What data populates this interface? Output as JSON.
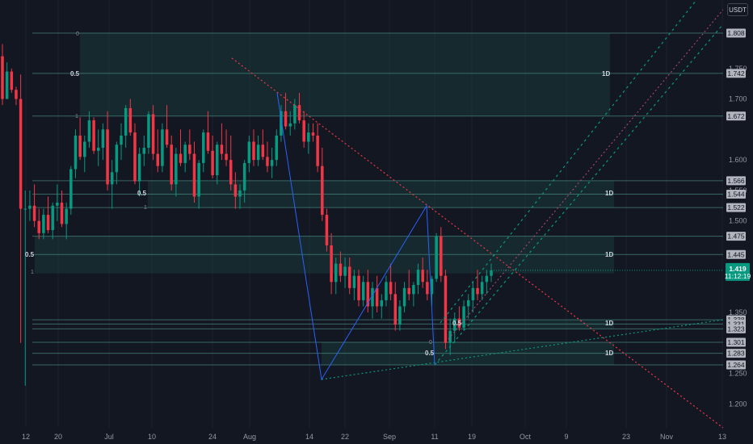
{
  "currency_button": "USDT",
  "chart_data": {
    "type": "candlestick",
    "time_axis_labels": [
      "12",
      "20",
      "Jul",
      "10",
      "24",
      "Aug",
      "14",
      "22",
      "Sep",
      "11",
      "19",
      "Oct",
      "9",
      "23",
      "Nov",
      "13"
    ],
    "y_axis_ticks": [
      "1.750",
      "1.700",
      "1.600",
      "1.550",
      "1.500",
      "1.350",
      "1.250",
      "1.200"
    ],
    "y_range": [
      1.16,
      1.84
    ],
    "current_price": {
      "value": 1.419,
      "label": "1.419",
      "countdown": "11:12:19",
      "color": "#089981"
    },
    "price_tags": [
      "1.808",
      "1.742",
      "1.672",
      "1.566",
      "1.544",
      "1.522",
      "1.475",
      "1.445",
      "1.414",
      "1.338",
      "1.331",
      "1.323",
      "1.301",
      "1.283",
      "1.264"
    ],
    "zone_labels": {
      "zone_top_fib_0": "0",
      "zone_top_fib_05": "0.5",
      "zone_top_fib_1": "1",
      "zone_top_tf": "1D",
      "zone_mid_fib_05": "0.5",
      "zone_mid_fib_1": "1",
      "zone_mid_tf": "1D",
      "zone_low_fib_05": "0.5",
      "zone_low_fib_1": "1",
      "zone_low_tf": "1D",
      "zone_sep_fib_05": "0.5",
      "zone_sep_tf": "1D",
      "zone_bot_fib_05": "0.5",
      "zone_bot_fib_0": "0",
      "zone_bot_tf": "1D"
    },
    "colors": {
      "up": "#089981",
      "down": "#f23645",
      "zone": "#1e5a4e",
      "zone_line": "#5aa898",
      "trend_red": "#f23645",
      "trend_green": "#089981",
      "pattern_blue": "#2962ff"
    },
    "candles": [
      [
        1.77,
        1.79,
        1.69,
        1.7
      ],
      [
        1.7,
        1.76,
        1.7,
        1.745
      ],
      [
        1.745,
        1.75,
        1.71,
        1.715
      ],
      [
        1.715,
        1.72,
        1.69,
        1.7
      ],
      [
        1.7,
        1.74,
        1.3,
        1.52
      ],
      [
        1.52,
        1.55,
        1.23,
        1.52
      ],
      [
        1.52,
        1.55,
        1.5,
        1.525
      ],
      [
        1.525,
        1.56,
        1.49,
        1.5
      ],
      [
        1.5,
        1.52,
        1.47,
        1.48
      ],
      [
        1.48,
        1.52,
        1.47,
        1.51
      ],
      [
        1.51,
        1.54,
        1.48,
        1.485
      ],
      [
        1.485,
        1.53,
        1.47,
        1.525
      ],
      [
        1.525,
        1.56,
        1.5,
        1.53
      ],
      [
        1.53,
        1.55,
        1.49,
        1.495
      ],
      [
        1.495,
        1.53,
        1.47,
        1.52
      ],
      [
        1.52,
        1.59,
        1.51,
        1.585
      ],
      [
        1.585,
        1.65,
        1.57,
        1.64
      ],
      [
        1.64,
        1.67,
        1.6,
        1.605
      ],
      [
        1.605,
        1.64,
        1.58,
        1.63
      ],
      [
        1.63,
        1.68,
        1.62,
        1.665
      ],
      [
        1.665,
        1.67,
        1.61,
        1.615
      ],
      [
        1.615,
        1.65,
        1.59,
        1.62
      ],
      [
        1.62,
        1.66,
        1.6,
        1.65
      ],
      [
        1.65,
        1.68,
        1.55,
        1.56
      ],
      [
        1.56,
        1.6,
        1.52,
        1.58
      ],
      [
        1.58,
        1.63,
        1.56,
        1.625
      ],
      [
        1.625,
        1.66,
        1.6,
        1.64
      ],
      [
        1.64,
        1.69,
        1.62,
        1.685
      ],
      [
        1.685,
        1.7,
        1.64,
        1.645
      ],
      [
        1.645,
        1.66,
        1.56,
        1.565
      ],
      [
        1.565,
        1.62,
        1.54,
        1.61
      ],
      [
        1.61,
        1.64,
        1.59,
        1.62
      ],
      [
        1.62,
        1.68,
        1.61,
        1.675
      ],
      [
        1.675,
        1.69,
        1.6,
        1.61
      ],
      [
        1.61,
        1.65,
        1.58,
        1.59
      ],
      [
        1.59,
        1.66,
        1.58,
        1.65
      ],
      [
        1.65,
        1.69,
        1.62,
        1.625
      ],
      [
        1.625,
        1.64,
        1.55,
        1.56
      ],
      [
        1.56,
        1.62,
        1.54,
        1.61
      ],
      [
        1.61,
        1.65,
        1.59,
        1.595
      ],
      [
        1.595,
        1.63,
        1.58,
        1.625
      ],
      [
        1.625,
        1.65,
        1.6,
        1.61
      ],
      [
        1.61,
        1.63,
        1.53,
        1.54
      ],
      [
        1.54,
        1.6,
        1.52,
        1.595
      ],
      [
        1.595,
        1.65,
        1.58,
        1.645
      ],
      [
        1.645,
        1.68,
        1.61,
        1.615
      ],
      [
        1.615,
        1.64,
        1.57,
        1.575
      ],
      [
        1.575,
        1.63,
        1.56,
        1.625
      ],
      [
        1.625,
        1.66,
        1.6,
        1.61
      ],
      [
        1.61,
        1.65,
        1.59,
        1.6
      ],
      [
        1.6,
        1.64,
        1.55,
        1.56
      ],
      [
        1.56,
        1.58,
        1.52,
        1.54
      ],
      [
        1.54,
        1.56,
        1.52,
        1.55
      ],
      [
        1.55,
        1.6,
        1.53,
        1.595
      ],
      [
        1.595,
        1.64,
        1.58,
        1.63
      ],
      [
        1.63,
        1.65,
        1.59,
        1.6
      ],
      [
        1.6,
        1.64,
        1.59,
        1.625
      ],
      [
        1.625,
        1.65,
        1.6,
        1.605
      ],
      [
        1.605,
        1.63,
        1.58,
        1.59
      ],
      [
        1.59,
        1.62,
        1.57,
        1.6
      ],
      [
        1.6,
        1.65,
        1.59,
        1.64
      ],
      [
        1.64,
        1.69,
        1.63,
        1.68
      ],
      [
        1.68,
        1.71,
        1.65,
        1.655
      ],
      [
        1.655,
        1.68,
        1.64,
        1.66
      ],
      [
        1.66,
        1.7,
        1.65,
        1.69
      ],
      [
        1.69,
        1.71,
        1.66,
        1.665
      ],
      [
        1.665,
        1.68,
        1.62,
        1.63
      ],
      [
        1.63,
        1.66,
        1.61,
        1.645
      ],
      [
        1.645,
        1.66,
        1.63,
        1.64
      ],
      [
        1.64,
        1.66,
        1.58,
        1.59
      ],
      [
        1.59,
        1.62,
        1.5,
        1.51
      ],
      [
        1.51,
        1.52,
        1.45,
        1.46
      ],
      [
        1.46,
        1.48,
        1.38,
        1.4
      ],
      [
        1.4,
        1.44,
        1.38,
        1.43
      ],
      [
        1.43,
        1.45,
        1.4,
        1.41
      ],
      [
        1.41,
        1.44,
        1.39,
        1.425
      ],
      [
        1.425,
        1.44,
        1.38,
        1.39
      ],
      [
        1.39,
        1.42,
        1.37,
        1.41
      ],
      [
        1.41,
        1.42,
        1.36,
        1.37
      ],
      [
        1.37,
        1.41,
        1.36,
        1.4
      ],
      [
        1.4,
        1.42,
        1.35,
        1.36
      ],
      [
        1.36,
        1.4,
        1.34,
        1.39
      ],
      [
        1.39,
        1.41,
        1.35,
        1.36
      ],
      [
        1.36,
        1.38,
        1.34,
        1.37
      ],
      [
        1.37,
        1.41,
        1.36,
        1.4
      ],
      [
        1.4,
        1.43,
        1.37,
        1.38
      ],
      [
        1.38,
        1.4,
        1.32,
        1.33
      ],
      [
        1.33,
        1.37,
        1.32,
        1.36
      ],
      [
        1.36,
        1.4,
        1.35,
        1.39
      ],
      [
        1.39,
        1.42,
        1.37,
        1.38
      ],
      [
        1.38,
        1.4,
        1.36,
        1.395
      ],
      [
        1.395,
        1.43,
        1.38,
        1.42
      ],
      [
        1.42,
        1.44,
        1.39,
        1.4
      ],
      [
        1.4,
        1.42,
        1.37,
        1.38
      ],
      [
        1.38,
        1.41,
        1.36,
        1.405
      ],
      [
        1.405,
        1.48,
        1.4,
        1.475
      ],
      [
        1.475,
        1.49,
        1.4,
        1.41
      ],
      [
        1.41,
        1.42,
        1.29,
        1.3
      ],
      [
        1.3,
        1.34,
        1.28,
        1.32
      ],
      [
        1.32,
        1.35,
        1.3,
        1.34
      ],
      [
        1.34,
        1.36,
        1.32,
        1.325
      ],
      [
        1.325,
        1.37,
        1.32,
        1.36
      ],
      [
        1.36,
        1.38,
        1.34,
        1.37
      ],
      [
        1.37,
        1.4,
        1.35,
        1.39
      ],
      [
        1.39,
        1.42,
        1.37,
        1.38
      ],
      [
        1.38,
        1.41,
        1.37,
        1.4
      ],
      [
        1.4,
        1.42,
        1.38,
        1.41
      ],
      [
        1.41,
        1.43,
        1.4,
        1.419
      ]
    ]
  }
}
